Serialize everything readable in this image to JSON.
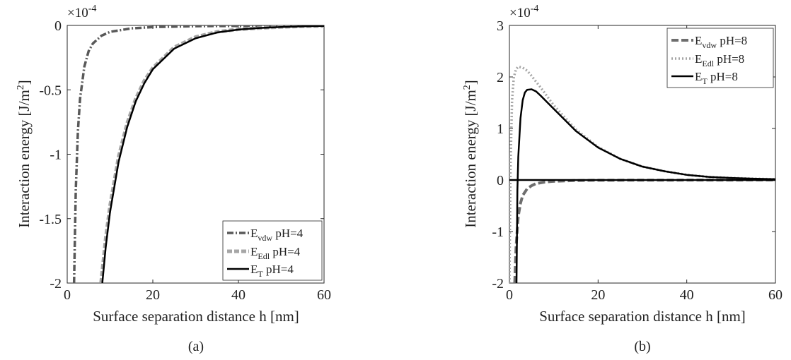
{
  "figure": {
    "panels": [
      {
        "id": "a",
        "caption": "(a)",
        "xlabel": "Surface separation distance h [nm]",
        "ylabel": "Interaction energy [J/m",
        "ylabel_sup": "2",
        "ylabel_tail": "]",
        "scale_base": "×10",
        "scale_exp": "-4",
        "xticks": [
          0,
          20,
          40,
          60
        ],
        "xtick_labels": [
          "0",
          "20",
          "40",
          "60"
        ],
        "yticks": [
          0,
          -0.5,
          -1,
          -1.5,
          -2
        ],
        "ytick_labels": [
          "0",
          "-0.5",
          "-1",
          "-1.5",
          "-2"
        ],
        "legend": [
          {
            "main": "E",
            "sub": "vdw",
            "tail": " pH=4"
          },
          {
            "main": "E",
            "sub": "Edl",
            "tail": " pH=4"
          },
          {
            "main": "E",
            "sub": "T",
            "tail": " pH=4"
          }
        ]
      },
      {
        "id": "b",
        "caption": "(b)",
        "xlabel": "Surface separation distance h [nm]",
        "ylabel": "Interaction energy [J/m",
        "ylabel_sup": "2",
        "ylabel_tail": "]",
        "scale_base": "×10",
        "scale_exp": "-4",
        "xticks": [
          0,
          20,
          40,
          60
        ],
        "xtick_labels": [
          "0",
          "20",
          "40",
          "60"
        ],
        "yticks": [
          3,
          2,
          1,
          0,
          -1,
          -2
        ],
        "ytick_labels": [
          "3",
          "2",
          "1",
          "0",
          "-1",
          "-2"
        ],
        "legend": [
          {
            "main": "E",
            "sub": "vdw",
            "tail": " pH=8"
          },
          {
            "main": "E",
            "sub": "Edl",
            "tail": " pH=8"
          },
          {
            "main": "E",
            "sub": "T",
            "tail": " pH=8"
          }
        ]
      }
    ]
  },
  "chart_data": [
    {
      "type": "line",
      "xlim": [
        0,
        60
      ],
      "ylim": [
        -2,
        0
      ],
      "y_scale_factor": "1e-4",
      "grid": false,
      "legend_position": "bottom-right",
      "colors": {
        "vdw": "#595959",
        "edl": "#a6a6a6",
        "total": "#000000"
      },
      "series": [
        {
          "name": "E vdw pH=4",
          "style": "dash-dot",
          "x": [
            1.6,
            2.0,
            2.5,
            3.0,
            4.0,
            5.0,
            6.0,
            8.0,
            10.0,
            15.0,
            20.0,
            30.0,
            60.0
          ],
          "y": [
            -2.0,
            -1.28,
            -0.82,
            -0.57,
            -0.32,
            -0.2,
            -0.14,
            -0.08,
            -0.05,
            -0.023,
            -0.013,
            -0.006,
            0.0
          ]
        },
        {
          "name": "E Edl pH=4",
          "style": "dashed",
          "x": [
            7.9,
            9.0,
            10.0,
            12.0,
            14.0,
            16.0,
            18.0,
            20.0,
            25.0,
            30.0,
            35.0,
            40.0,
            45.0,
            50.0,
            55.0,
            60.0
          ],
          "y": [
            -2.0,
            -1.65,
            -1.4,
            -1.02,
            -0.76,
            -0.57,
            -0.43,
            -0.33,
            -0.17,
            -0.09,
            -0.05,
            -0.03,
            -0.02,
            -0.012,
            -0.007,
            -0.004
          ]
        },
        {
          "name": "E T pH=4",
          "style": "solid",
          "x": [
            8.2,
            9.0,
            10.0,
            12.0,
            14.0,
            16.0,
            18.0,
            20.0,
            25.0,
            30.0,
            35.0,
            40.0,
            45.0,
            50.0,
            55.0,
            60.0
          ],
          "y": [
            -2.0,
            -1.72,
            -1.45,
            -1.06,
            -0.79,
            -0.59,
            -0.45,
            -0.34,
            -0.18,
            -0.1,
            -0.055,
            -0.032,
            -0.02,
            -0.012,
            -0.007,
            -0.004
          ]
        }
      ]
    },
    {
      "type": "line",
      "xlim": [
        0,
        60
      ],
      "ylim": [
        -2,
        3
      ],
      "y_scale_factor": "1e-4",
      "grid": false,
      "legend_position": "top-right",
      "colors": {
        "vdw": "#6e6e6e",
        "edl": "#a6a6a6",
        "total": "#000000"
      },
      "series": [
        {
          "name": "E vdw pH=8",
          "style": "dashed",
          "x": [
            1.2,
            1.5,
            2.0,
            2.5,
            3.0,
            4.0,
            5.0,
            6.0,
            8.0,
            10.0,
            15.0,
            20.0,
            60.0
          ],
          "y": [
            -2.0,
            -1.3,
            -0.7,
            -0.45,
            -0.3,
            -0.17,
            -0.11,
            -0.07,
            -0.04,
            -0.025,
            -0.01,
            -0.005,
            0.0
          ]
        },
        {
          "name": "E Edl pH=8",
          "style": "dotted",
          "x": [
            0.0,
            0.25,
            0.6,
            1.0,
            1.5,
            2.0,
            3.0,
            4.0,
            5.0,
            7.0,
            10.0,
            15.0,
            20.0,
            25.0,
            30.0,
            35.0,
            40.0,
            45.0,
            50.0,
            55.0,
            60.0
          ],
          "y": [
            -2.0,
            0.3,
            1.55,
            2.0,
            2.15,
            2.2,
            2.18,
            2.12,
            2.02,
            1.8,
            1.45,
            0.98,
            0.64,
            0.41,
            0.26,
            0.17,
            0.1,
            0.06,
            0.04,
            0.025,
            0.015
          ]
        },
        {
          "name": "E T pH=8",
          "style": "solid",
          "x": [
            1.6,
            1.8,
            2.0,
            2.5,
            3.0,
            3.5,
            4.0,
            5.0,
            6.0,
            7.0,
            10.0,
            15.0,
            20.0,
            25.0,
            30.0,
            35.0,
            40.0,
            45.0,
            50.0,
            55.0,
            60.0
          ],
          "y": [
            -2.0,
            -0.2,
            0.45,
            1.2,
            1.55,
            1.7,
            1.75,
            1.76,
            1.72,
            1.64,
            1.38,
            0.95,
            0.63,
            0.41,
            0.26,
            0.17,
            0.1,
            0.06,
            0.04,
            0.025,
            0.015
          ]
        },
        {
          "name": "",
          "style": "solid-zero-line",
          "x": [
            0.0,
            60.0
          ],
          "y": [
            0.0,
            0.0
          ]
        }
      ]
    }
  ]
}
